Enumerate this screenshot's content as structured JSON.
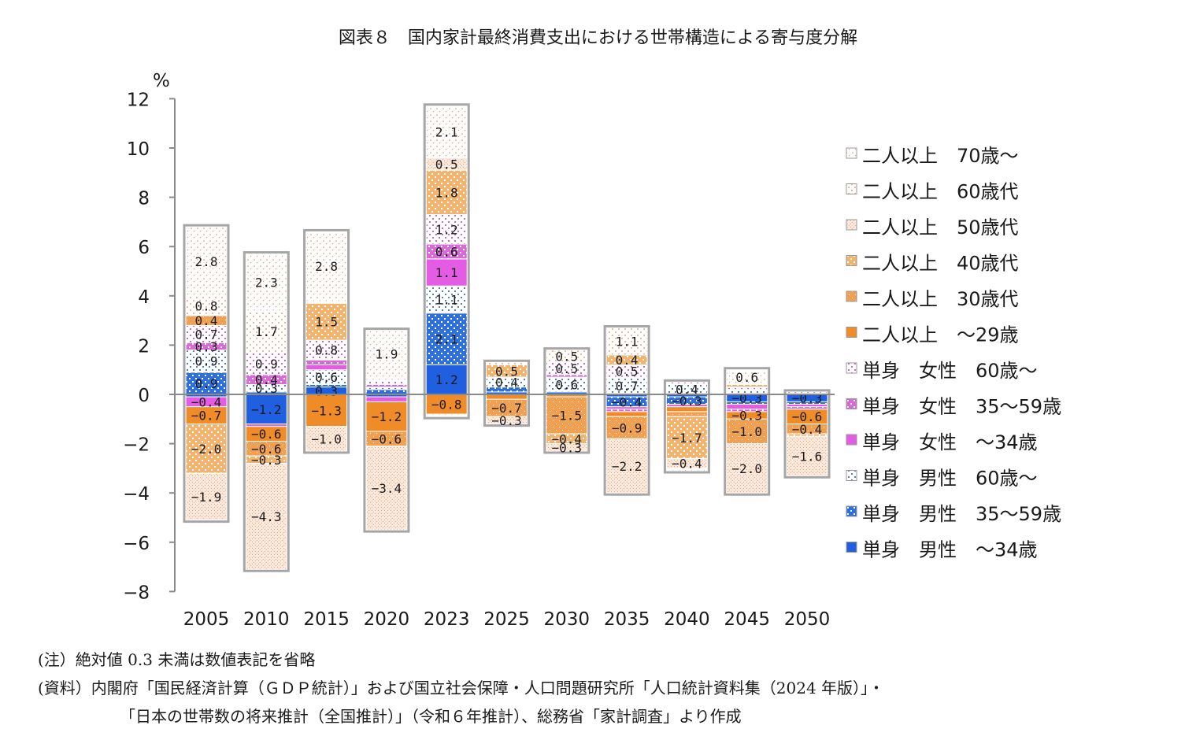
{
  "title": "図表８　国内家計最終消費支出における世帯構造による寄与度分解",
  "chart_data": {
    "type": "bar",
    "stacked": true,
    "title": "図表８　国内家計最終消費支出における世帯構造による寄与度分解",
    "ylabel": "%",
    "ylim": [
      -8,
      12
    ],
    "yticks": [
      -8,
      -6,
      -4,
      -2,
      0,
      2,
      4,
      6,
      8,
      10,
      12
    ],
    "grid": false,
    "legend_position": "right",
    "categories": [
      "2005",
      "2010",
      "2015",
      "2020",
      "2023",
      "2025",
      "2030",
      "2035",
      "2040",
      "2045",
      "2050"
    ],
    "series": [
      {
        "name": "単身　男性　～34歳",
        "color": "#1f5fe0",
        "values": [
          -0.1,
          -1.2,
          0.3,
          -0.1,
          1.2,
          0.1,
          0.0,
          -0.1,
          -0.1,
          -0.3,
          -0.3
        ]
      },
      {
        "name": "単身　男性　35～59歳",
        "color": "#2e6fd8",
        "values": [
          0.9,
          0.1,
          0.1,
          0.2,
          2.1,
          0.2,
          0.1,
          -0.4,
          -0.3,
          -0.1,
          -0.1
        ]
      },
      {
        "name": "単身　男性　60歳～",
        "color": "#4a7fd4",
        "values": [
          0.9,
          0.3,
          0.6,
          0.1,
          1.1,
          0.4,
          0.6,
          0.7,
          0.4,
          0.2,
          0.1
        ]
      },
      {
        "name": "単身　女性　～34歳",
        "color": "#e45ce4",
        "values": [
          -0.4,
          -0.1,
          0.2,
          -0.2,
          1.1,
          0.0,
          0.0,
          -0.1,
          0.0,
          -0.2,
          -0.1
        ]
      },
      {
        "name": "単身　女性　35～59歳",
        "color": "#d86ad8",
        "values": [
          0.3,
          0.4,
          0.2,
          0.1,
          0.6,
          0.0,
          0.1,
          -0.1,
          -0.1,
          -0.1,
          -0.1
        ]
      },
      {
        "name": "単身　女性　60歳～",
        "color": "#cc66cc",
        "values": [
          0.7,
          0.9,
          0.8,
          0.2,
          1.2,
          0.0,
          0.5,
          0.5,
          0.1,
          0.1,
          0.0
        ]
      },
      {
        "name": "二人以上　～29歳",
        "color": "#f08c28",
        "values": [
          -0.7,
          -0.6,
          -1.3,
          -1.2,
          -0.8,
          -0.2,
          -0.1,
          -0.2,
          -0.2,
          -0.3,
          -0.6
        ]
      },
      {
        "name": "二人以上　30歳代",
        "color": "#f0a050",
        "values": [
          0.4,
          -0.6,
          0.0,
          -0.6,
          0.0,
          -0.7,
          -1.5,
          -0.9,
          -0.2,
          -1.0,
          -0.4
        ]
      },
      {
        "name": "二人以上　40歳代",
        "color": "#f0b46e",
        "values": [
          -2.0,
          -0.3,
          1.5,
          0.0,
          1.8,
          0.5,
          -0.4,
          0.4,
          -1.7,
          0.1,
          -0.1
        ]
      },
      {
        "name": "二人以上　50歳代",
        "color": "#e8a878",
        "values": [
          -1.9,
          -4.3,
          -1.0,
          -3.4,
          0.5,
          -0.3,
          -0.3,
          -2.2,
          -0.4,
          -2.0,
          -1.6
        ]
      },
      {
        "name": "二人以上　60歳代",
        "color": "#f0b898",
        "values": [
          0.8,
          1.7,
          0.1,
          0.1,
          -0.1,
          0.1,
          0.5,
          1.1,
          0.0,
          0.0,
          0.0
        ]
      },
      {
        "name": "二人以上　70歳～",
        "color": "#f5c8b0",
        "values": [
          2.8,
          2.3,
          2.8,
          1.9,
          2.1,
          0.0,
          0.0,
          0.0,
          -0.1,
          0.6,
          0.0
        ]
      }
    ],
    "net_values": [
      -5.0,
      -7.0,
      6.6,
      -5.7,
      11.8,
      -1.2,
      -2.1,
      -4.3,
      -3.3,
      -4.3,
      -3.5
    ],
    "data_label_rule": "絶対値 0.3 未満は数値表記を省略"
  },
  "notes": {
    "note1": "(注）絶対値 0.3 未満は数値表記を省略",
    "source_line1": "(資料）内閣府「国民経済計算（ＧＤＰ統計）」および国立社会保障・人口問題研究所「人口統計資料集（2024 年版）」・",
    "source_line2": "「日本の世帯数の将来推計（全国推計）」（令和６年推計）、総務省「家計調査」より作成"
  }
}
